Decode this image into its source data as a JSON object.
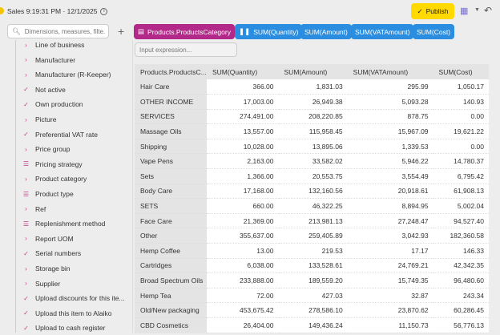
{
  "header": {
    "title": "Sales 9:19:31 PM · 12/1/2025",
    "info_icon": "i",
    "publish_label": "Publish"
  },
  "sidebar": {
    "search_placeholder": "Dimensions, measures, filte...",
    "add_label": "+",
    "items": [
      {
        "label": "Line of business",
        "icon": "chevron-right"
      },
      {
        "label": "Manufacturer",
        "icon": "chevron-right"
      },
      {
        "label": "Manufacturer (R-Keeper)",
        "icon": "chevron-right"
      },
      {
        "label": "Not active",
        "icon": "check"
      },
      {
        "label": "Own production",
        "icon": "check"
      },
      {
        "label": "Picture",
        "icon": "chevron-right"
      },
      {
        "label": "Preferential VAT rate",
        "icon": "check"
      },
      {
        "label": "Price group",
        "icon": "chevron-right"
      },
      {
        "label": "Pricing strategy",
        "icon": "list"
      },
      {
        "label": "Product category",
        "icon": "chevron-right"
      },
      {
        "label": "Product type",
        "icon": "list"
      },
      {
        "label": "Ref",
        "icon": "chevron-right"
      },
      {
        "label": "Replenishment method",
        "icon": "list"
      },
      {
        "label": "Report UOM",
        "icon": "chevron-right"
      },
      {
        "label": "Serial numbers",
        "icon": "check"
      },
      {
        "label": "Storage bin",
        "icon": "chevron-right"
      },
      {
        "label": "Supplier",
        "icon": "chevron-right"
      },
      {
        "label": "Upload discounts for this ite...",
        "icon": "check"
      },
      {
        "label": "Upload this item to Alaiko",
        "icon": "check"
      },
      {
        "label": "Upload to cash register",
        "icon": "check"
      }
    ]
  },
  "chips": {
    "dimension": "Products.ProductsCategory",
    "measures": [
      "SUM(Quantity)",
      "SUM(Amount)",
      "SUM(VATAmount)",
      "SUM(Cost)"
    ]
  },
  "expression": {
    "placeholder": "Input expression..."
  },
  "table": {
    "headers": [
      "Products.ProductsC...",
      "SUM(Quantity)",
      "SUM(Amount)",
      "SUM(VATAmount)",
      "SUM(Cost)"
    ],
    "rows": [
      [
        "Hair Care",
        "366.00",
        "1,831.03",
        "295.99",
        "1,050.17"
      ],
      [
        "OTHER INCOME",
        "17,003.00",
        "26,949.38",
        "5,093.28",
        "140.93"
      ],
      [
        "SERVICES",
        "274,491.00",
        "208,220.85",
        "878.75",
        "0.00"
      ],
      [
        "Massage Oils",
        "13,557.00",
        "115,958.45",
        "15,967.09",
        "19,621.22"
      ],
      [
        "Shipping",
        "10,028.00",
        "13,895.06",
        "1,339.53",
        "0.00"
      ],
      [
        "Vape Pens",
        "2,163.00",
        "33,582.02",
        "5,946.22",
        "14,780.37"
      ],
      [
        "Sets",
        "1,366.00",
        "20,553.75",
        "3,554.49",
        "6,795.42"
      ],
      [
        "Body Care",
        "17,168.00",
        "132,160.56",
        "20,918.61",
        "61,908.13"
      ],
      [
        "SETS",
        "660.00",
        "46,322.25",
        "8,894.95",
        "5,002.04"
      ],
      [
        "Face Care",
        "21,369.00",
        "213,981.13",
        "27,248.47",
        "94,527.40"
      ],
      [
        "Other",
        "355,637.00",
        "259,405.89",
        "3,042.93",
        "182,360.58"
      ],
      [
        "Hemp Coffee",
        "13.00",
        "219.53",
        "17.17",
        "146.33"
      ],
      [
        "Cartridges",
        "6,038.00",
        "133,528.61",
        "24,769.21",
        "42,342.35"
      ],
      [
        "Broad Spectrum Oils",
        "233,888.00",
        "189,559.20",
        "15,749.35",
        "96,480.60"
      ],
      [
        "Hemp Tea",
        "72.00",
        "427.03",
        "32.87",
        "243.34"
      ],
      [
        "Old/New packaging",
        "453,675.42",
        "278,586.10",
        "23,870.62",
        "60,286.45"
      ],
      [
        "CBD Cosmetics",
        "26,404.00",
        "149,436.24",
        "11,150.73",
        "56,776.13"
      ]
    ]
  }
}
